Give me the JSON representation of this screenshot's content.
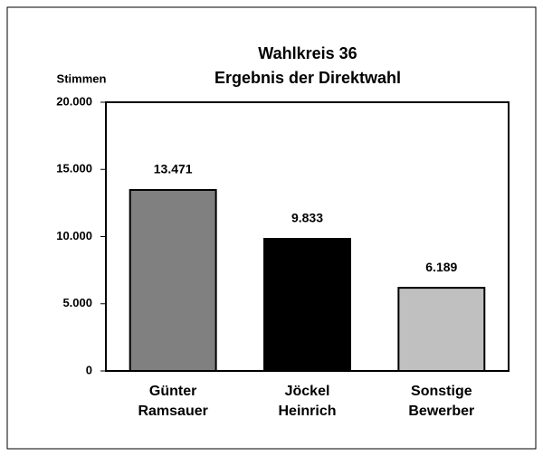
{
  "chart_data": {
    "type": "bar",
    "title": "Wahlkreis 36",
    "subtitle": "Ergebnis der Direktwahl",
    "y_label": "Stimmen",
    "categories": [
      "Günter Ramsauer",
      "Jöckel Heinrich",
      "Sonstige Bewerber"
    ],
    "values": [
      13471,
      9833,
      6189
    ],
    "value_labels": [
      "13.471",
      "9.833",
      "6.189"
    ],
    "colors": [
      "#808080",
      "#000000",
      "#c0c0c0"
    ],
    "ylim": [
      0,
      20000
    ],
    "yticks": [
      {
        "value": 0,
        "label": "0"
      },
      {
        "value": 5000,
        "label": "5.000"
      },
      {
        "value": 10000,
        "label": "10.000"
      },
      {
        "value": 15000,
        "label": "15.000"
      },
      {
        "value": 20000,
        "label": "20.000"
      }
    ],
    "grid": false
  }
}
